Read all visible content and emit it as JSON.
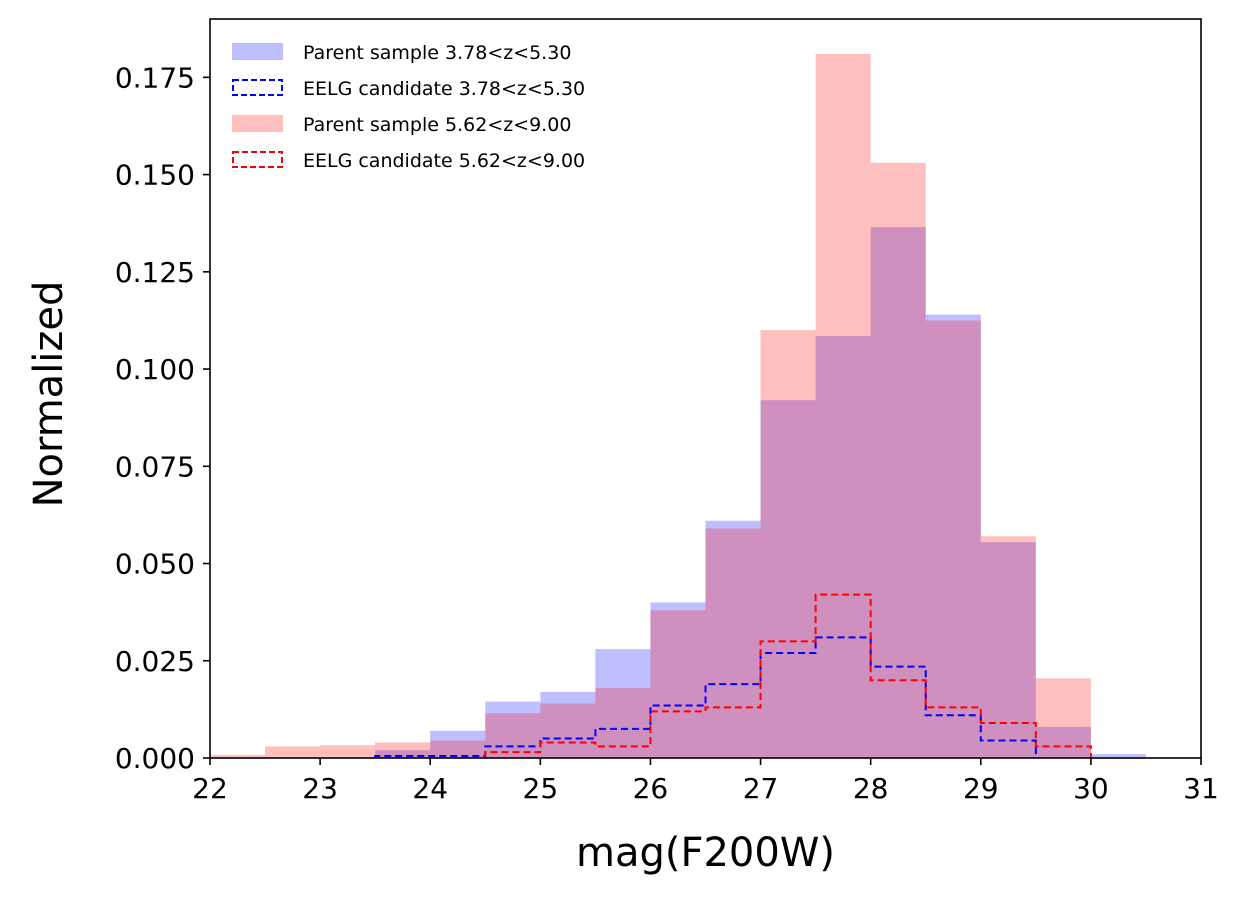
{
  "chart_data": {
    "type": "bar",
    "subtype": "histogram",
    "xlabel": "mag(F200W)",
    "ylabel": "Normalized",
    "xlim": [
      22,
      31
    ],
    "ylim": [
      0,
      0.19
    ],
    "xticks": [
      "22",
      "23",
      "24",
      "25",
      "26",
      "27",
      "28",
      "29",
      "30",
      "31"
    ],
    "yticks": [
      "0.000",
      "0.025",
      "0.050",
      "0.075",
      "0.100",
      "0.125",
      "0.150",
      "0.175"
    ],
    "bin_edges": [
      22.0,
      22.5,
      23.0,
      23.5,
      24.0,
      24.5,
      25.0,
      25.5,
      26.0,
      26.5,
      27.0,
      27.5,
      28.0,
      28.5,
      29.0,
      29.5,
      30.0,
      30.5
    ],
    "legend_position": "top-left",
    "grid": false,
    "series": [
      {
        "name": "Parent sample 3.78<z<5.30",
        "style": "filled",
        "color": "#0000ff",
        "opacity": 0.25,
        "values": [
          0.0,
          0.0,
          0.0,
          0.002,
          0.007,
          0.0145,
          0.017,
          0.028,
          0.04,
          0.061,
          0.092,
          0.1085,
          0.1365,
          0.114,
          0.0555,
          0.008,
          0.001
        ]
      },
      {
        "name": "EELG candidate 3.78<z<5.30",
        "style": "step-dashed",
        "color": "#0000ff",
        "values": [
          0.0,
          0.0,
          0.0,
          0.0005,
          0.0005,
          0.003,
          0.005,
          0.0075,
          0.0135,
          0.019,
          0.027,
          0.031,
          0.0235,
          0.011,
          0.0045,
          0.0,
          0.0
        ]
      },
      {
        "name": "Parent sample 5.62<z<9.00",
        "style": "filled",
        "color": "#ff0000",
        "opacity": 0.25,
        "values": [
          0.0008,
          0.003,
          0.0033,
          0.004,
          0.0045,
          0.0115,
          0.014,
          0.018,
          0.038,
          0.059,
          0.11,
          0.181,
          0.153,
          0.1125,
          0.057,
          0.0205,
          0.0
        ]
      },
      {
        "name": "EELG candidate 5.62<z<9.00",
        "style": "step-dashed",
        "color": "#ff0000",
        "values": [
          0.0,
          0.0,
          0.0,
          0.0,
          0.0,
          0.0015,
          0.004,
          0.003,
          0.012,
          0.013,
          0.03,
          0.042,
          0.02,
          0.013,
          0.009,
          0.003,
          0.0
        ]
      }
    ]
  }
}
